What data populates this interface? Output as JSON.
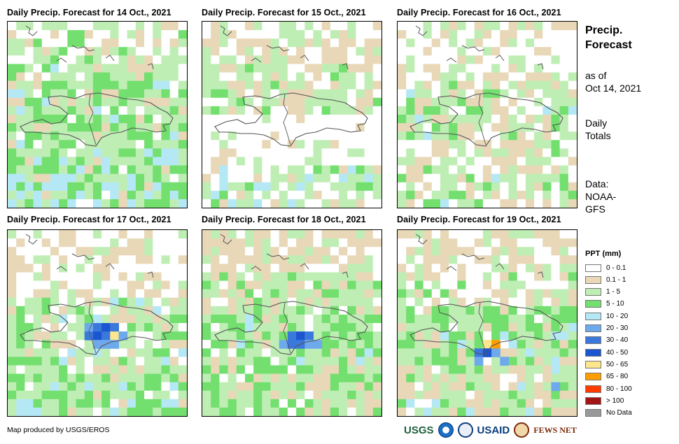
{
  "panels": [
    {
      "title": "Daily Precip. Forecast for 14 Oct., 2021",
      "seed": 14,
      "bands": "a",
      "hotspots": []
    },
    {
      "title": "Daily Precip. Forecast for 15 Oct., 2021",
      "seed": 15,
      "bands": "b",
      "hotspots": []
    },
    {
      "title": "Daily Precip. Forecast for 16 Oct., 2021",
      "seed": 16,
      "bands": "c",
      "hotspots": []
    },
    {
      "title": "Daily Precip. Forecast for 17 Oct., 2021",
      "seed": 17,
      "bands": "d",
      "hotspots": [
        {
          "col": 9,
          "row": 11,
          "rank": 5
        },
        {
          "col": 10,
          "row": 11,
          "rank": 6
        },
        {
          "col": 11,
          "row": 11,
          "rank": 7
        },
        {
          "col": 12,
          "row": 11,
          "rank": 6
        },
        {
          "col": 9,
          "row": 12,
          "rank": 6
        },
        {
          "col": 10,
          "row": 12,
          "rank": 7
        },
        {
          "col": 11,
          "row": 12,
          "rank": 6
        },
        {
          "col": 12,
          "row": 12,
          "rank": 8
        },
        {
          "col": 13,
          "row": 12,
          "rank": 5
        },
        {
          "col": 10,
          "row": 13,
          "rank": 5
        },
        {
          "col": 11,
          "row": 13,
          "rank": 5
        },
        {
          "col": 12,
          "row": 13,
          "rank": 5
        }
      ]
    },
    {
      "title": "Daily Precip. Forecast for 18 Oct., 2021",
      "seed": 18,
      "bands": "e",
      "hotspots": [
        {
          "col": 10,
          "row": 12,
          "rank": 6
        },
        {
          "col": 11,
          "row": 12,
          "rank": 7
        },
        {
          "col": 12,
          "row": 12,
          "rank": 6
        },
        {
          "col": 9,
          "row": 13,
          "rank": 5
        },
        {
          "col": 10,
          "row": 13,
          "rank": 6
        },
        {
          "col": 11,
          "row": 13,
          "rank": 6
        },
        {
          "col": 12,
          "row": 13,
          "rank": 5
        },
        {
          "col": 13,
          "row": 13,
          "rank": 5
        }
      ]
    },
    {
      "title": "Daily Precip. Forecast for 19 Oct., 2021",
      "seed": 19,
      "bands": "f",
      "hotspots": [
        {
          "col": 10,
          "row": 13,
          "rank": 8
        },
        {
          "col": 11,
          "row": 13,
          "rank": 9
        },
        {
          "col": 9,
          "row": 14,
          "rank": 6
        },
        {
          "col": 10,
          "row": 14,
          "rank": 7
        },
        {
          "col": 11,
          "row": 14,
          "rank": 5
        },
        {
          "col": 9,
          "row": 15,
          "rank": 5
        },
        {
          "col": 12,
          "row": 15,
          "rank": 5
        },
        {
          "col": 18,
          "row": 18,
          "rank": 5
        }
      ]
    }
  ],
  "side": {
    "title_line1": "Precip.",
    "title_line2": "Forecast",
    "asof_line1": "as of",
    "asof_line2": "Oct 14, 2021",
    "totals_line1": "Daily",
    "totals_line2": "Totals",
    "data_line1": "Data:",
    "data_line2": "NOAA-",
    "data_line3": "GFS"
  },
  "legend": {
    "title": "PPT (mm)",
    "items": [
      {
        "label": "0 - 0.1",
        "color": "#ffffff"
      },
      {
        "label": "0.1 - 1",
        "color": "#e8d8b8"
      },
      {
        "label": "1 - 5",
        "color": "#bfeeb5"
      },
      {
        "label": "5 - 10",
        "color": "#73df6f"
      },
      {
        "label": "10 - 20",
        "color": "#b5e8f5"
      },
      {
        "label": "20 - 30",
        "color": "#6ea9ec"
      },
      {
        "label": "30 - 40",
        "color": "#3b78dc"
      },
      {
        "label": "40 - 50",
        "color": "#1c55d0"
      },
      {
        "label": "50 - 65",
        "color": "#fde68c"
      },
      {
        "label": "65 - 80",
        "color": "#ff9e00"
      },
      {
        "label": "80 - 100",
        "color": "#ff3c00"
      },
      {
        "label": "> 100",
        "color": "#a31515"
      },
      {
        "label": "No Data",
        "color": "#999999"
      }
    ]
  },
  "credit": "Map produced by USGS/EROS",
  "logos": {
    "usgs": "USGS",
    "usaid": "USAID",
    "fews": "FEWS NET"
  }
}
